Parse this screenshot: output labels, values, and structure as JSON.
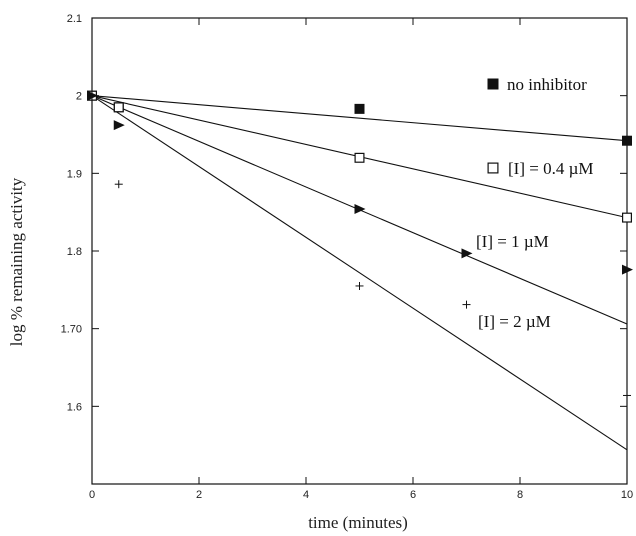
{
  "chart_data": {
    "type": "scatter",
    "title": "",
    "xlabel": "time (minutes)",
    "ylabel": "log % remaining activity",
    "xlim": [
      0,
      10
    ],
    "ylim": [
      1.5,
      2.1
    ],
    "xticks": [
      0,
      2,
      4,
      6,
      8,
      10
    ],
    "xtick_labels": [
      "0",
      "2",
      "4",
      "6",
      "8",
      "10"
    ],
    "yticks": [
      1.6,
      1.7,
      1.8,
      1.9,
      2.0,
      2.1
    ],
    "ytick_labels": [
      "1.6",
      "1.70",
      "1.8",
      "1.9",
      "2",
      "2.1"
    ],
    "grid": false,
    "legend": "inline, right side next to series",
    "series": [
      {
        "name": "no inhibitor",
        "marker": "filled-square",
        "x": [
          0,
          0.5,
          5,
          10
        ],
        "y": [
          2.0,
          1.985,
          1.983,
          1.942
        ],
        "fit": {
          "x": [
            0,
            10
          ],
          "y": [
            2.0,
            1.942
          ]
        }
      },
      {
        "name": "[I] = 0.4 µM",
        "marker": "open-square",
        "x": [
          0,
          0.5,
          5,
          10
        ],
        "y": [
          2.0,
          1.985,
          1.92,
          1.843
        ],
        "fit": {
          "x": [
            0,
            10
          ],
          "y": [
            2.0,
            1.843
          ]
        }
      },
      {
        "name": "[I] = 1 µM",
        "marker": "filled-triangle-right",
        "x": [
          0,
          0.5,
          5,
          7,
          10
        ],
        "y": [
          2.0,
          1.962,
          1.854,
          1.797,
          1.776
        ],
        "fit": {
          "x": [
            0,
            10
          ],
          "y": [
            2.0,
            1.706
          ]
        }
      },
      {
        "name": "[I] = 2 µM",
        "marker": "plus",
        "x": [
          0,
          0.5,
          5,
          7,
          10
        ],
        "y": [
          2.0,
          1.886,
          1.755,
          1.731,
          1.614
        ],
        "fit": {
          "x": [
            0,
            10
          ],
          "y": [
            2.0,
            1.544
          ]
        }
      }
    ],
    "colors": {
      "ink": "#111111",
      "background": "#ffffff"
    }
  }
}
